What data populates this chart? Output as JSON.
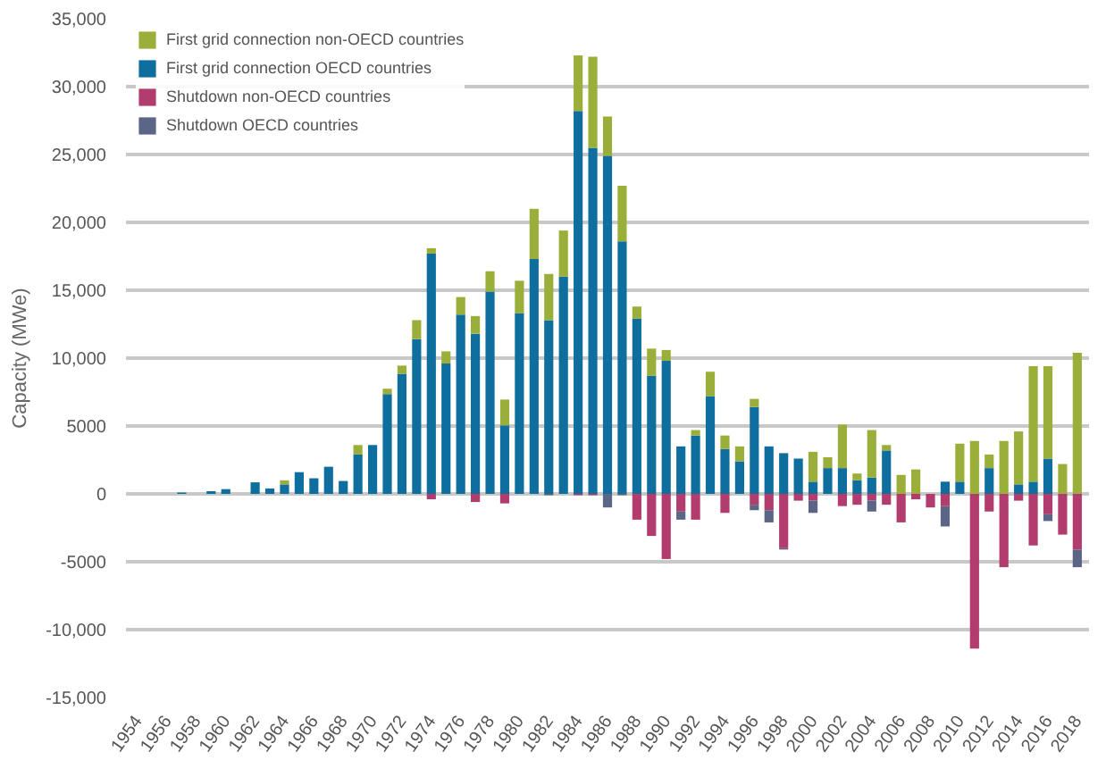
{
  "chart_data": {
    "type": "bar",
    "stacked": true,
    "ylabel": "Capacity (MWe)",
    "categories": [
      "1954",
      null,
      "1956",
      null,
      "1958",
      null,
      "1960",
      null,
      "1962",
      null,
      "1964",
      null,
      "1966",
      null,
      "1968",
      null,
      "1970",
      null,
      "1972",
      null,
      "1974",
      null,
      "1976",
      null,
      "1978",
      null,
      "1980",
      null,
      "1982",
      null,
      "1984",
      null,
      "1986",
      null,
      "1988",
      null,
      "1990",
      null,
      "1992",
      null,
      "1994",
      null,
      "1996",
      null,
      "1998",
      null,
      "2000",
      null,
      "2002",
      null,
      "2004",
      null,
      "2006",
      null,
      "2008",
      null,
      "2010",
      null,
      "2012",
      null,
      "2014",
      null,
      "2016",
      null,
      "2018"
    ],
    "series": [
      {
        "name": "First grid connection OECD countries",
        "color": "#0e6f9e",
        "values": [
          0,
          0,
          0,
          100,
          0,
          200,
          350,
          0,
          850,
          400,
          700,
          1600,
          1150,
          2000,
          950,
          2900,
          3600,
          7350,
          8850,
          11400,
          17700,
          9600,
          13200,
          11800,
          14900,
          5050,
          13300,
          17300,
          12800,
          16000,
          28200,
          25500,
          24900,
          18600,
          12900,
          8700,
          9800,
          3500,
          4300,
          7200,
          3300,
          2400,
          6400,
          3500,
          3000,
          2600,
          900,
          1900,
          1900,
          1000,
          1200,
          3200,
          0,
          0,
          0,
          900,
          900,
          0,
          1900,
          0,
          700,
          900,
          2600,
          0,
          0
        ]
      },
      {
        "name": "First grid connection non-OECD countries",
        "color": "#9aaf3a",
        "values": [
          0,
          0,
          0,
          0,
          0,
          0,
          0,
          0,
          0,
          0,
          300,
          0,
          0,
          0,
          0,
          700,
          0,
          400,
          600,
          1400,
          400,
          900,
          1300,
          1300,
          1500,
          1900,
          2400,
          3700,
          3400,
          3400,
          4100,
          6700,
          2900,
          4100,
          900,
          2000,
          800,
          0,
          400,
          1800,
          1000,
          1100,
          600,
          0,
          0,
          0,
          2200,
          800,
          3200,
          500,
          3500,
          400,
          1400,
          1800,
          0,
          0,
          2800,
          3900,
          1000,
          3900,
          3900,
          8500,
          6800,
          2200,
          10400
        ]
      },
      {
        "name": "Shutdown non-OECD countries",
        "color": "#b23c6e",
        "values": [
          0,
          0,
          0,
          0,
          0,
          0,
          0,
          0,
          0,
          0,
          0,
          0,
          0,
          0,
          0,
          0,
          0,
          0,
          0,
          0,
          -400,
          0,
          0,
          -600,
          0,
          -700,
          0,
          0,
          0,
          0,
          -100,
          -100,
          0,
          0,
          -1900,
          -3100,
          -4800,
          -1300,
          -1900,
          0,
          -1400,
          0,
          -800,
          -1200,
          -4000,
          -500,
          -500,
          0,
          -900,
          -800,
          -500,
          -800,
          -2100,
          -400,
          -1000,
          -900,
          0,
          -11400,
          -1300,
          -5400,
          -500,
          -3800,
          -1500,
          -3000,
          -4100
        ]
      },
      {
        "name": "Shutdown OECD countries",
        "color": "#5b6585",
        "values": [
          0,
          0,
          0,
          0,
          0,
          0,
          0,
          0,
          0,
          0,
          0,
          0,
          0,
          0,
          0,
          0,
          0,
          0,
          0,
          0,
          0,
          0,
          0,
          0,
          0,
          0,
          0,
          0,
          -100,
          0,
          0,
          0,
          -1000,
          -100,
          0,
          0,
          0,
          -600,
          0,
          0,
          0,
          0,
          -400,
          -900,
          -100,
          0,
          -900,
          0,
          0,
          0,
          -800,
          0,
          0,
          0,
          0,
          -1500,
          0,
          0,
          0,
          0,
          0,
          0,
          -500,
          0,
          -1300
        ]
      }
    ],
    "ylim": [
      -15000,
      35000
    ],
    "yticks": [
      {
        "value": -15000,
        "label": "-15,000"
      },
      {
        "value": -10000,
        "label": "-10,000"
      },
      -5000,
      0,
      5000,
      {
        "value": 10000,
        "label": "10,000"
      },
      {
        "value": 15000,
        "label": "15,000"
      },
      {
        "value": 20000,
        "label": "20,000"
      },
      {
        "value": 25000,
        "label": "25,000"
      },
      {
        "value": 30000,
        "label": "30,000"
      },
      {
        "value": 35000,
        "label": "35,000"
      }
    ],
    "grid": "y",
    "legend": "top left"
  }
}
